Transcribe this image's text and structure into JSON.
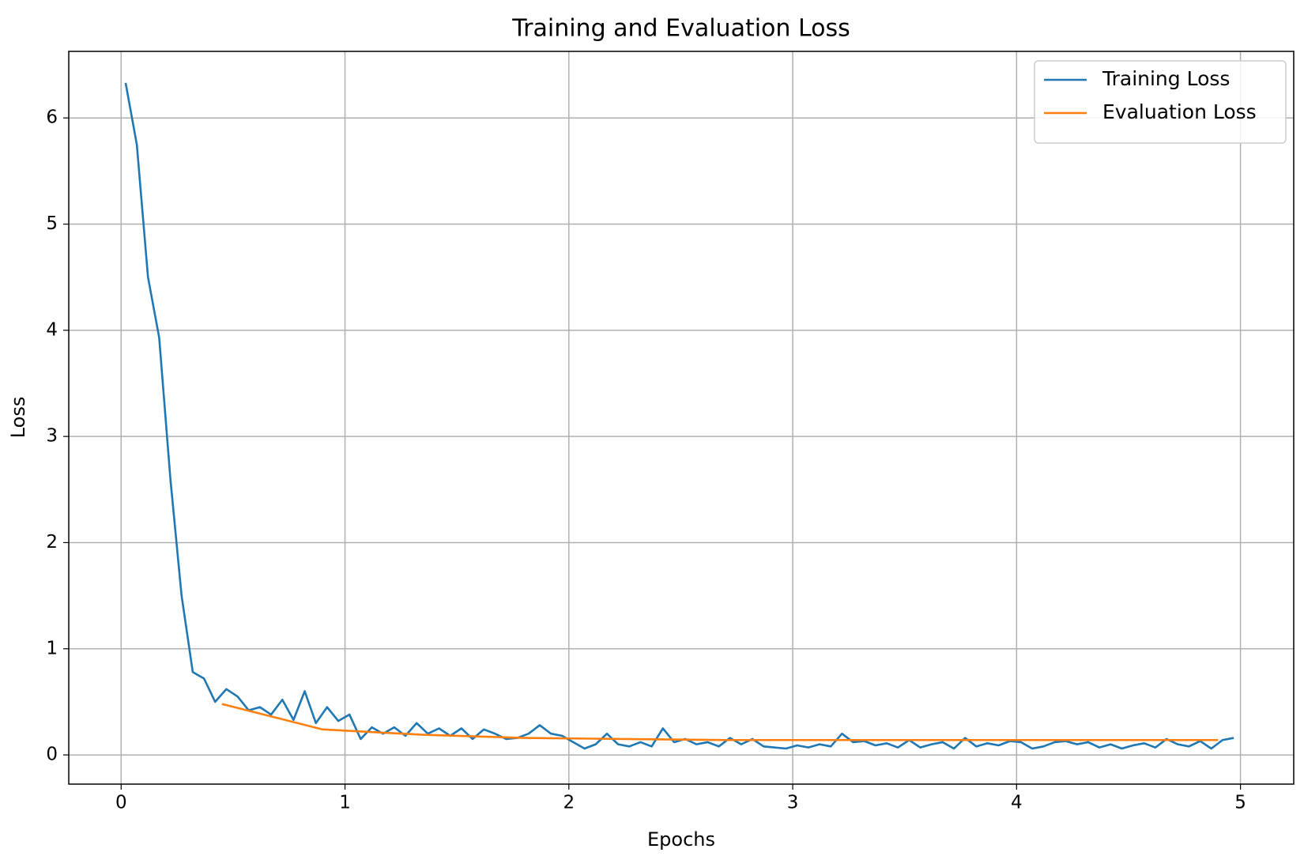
{
  "chart_data": {
    "type": "line",
    "title": "Training and Evaluation Loss",
    "xlabel": "Epochs",
    "ylabel": "Loss",
    "xlim": [
      -0.234,
      5.238
    ],
    "ylim": [
      -0.275,
      6.627
    ],
    "xticks": [
      0,
      1,
      2,
      3,
      4,
      5
    ],
    "yticks": [
      0,
      1,
      2,
      3,
      4,
      5,
      6
    ],
    "grid": true,
    "legend": "upper right",
    "series": [
      {
        "name": "Training Loss",
        "color": "#1f77b4",
        "x": [
          0.02,
          0.07,
          0.12,
          0.17,
          0.22,
          0.27,
          0.32,
          0.37,
          0.42,
          0.47,
          0.52,
          0.57,
          0.62,
          0.67,
          0.72,
          0.77,
          0.82,
          0.87,
          0.92,
          0.97,
          1.02,
          1.07,
          1.12,
          1.17,
          1.22,
          1.27,
          1.32,
          1.37,
          1.42,
          1.47,
          1.52,
          1.57,
          1.62,
          1.67,
          1.72,
          1.77,
          1.82,
          1.87,
          1.92,
          1.97,
          2.02,
          2.07,
          2.12,
          2.17,
          2.22,
          2.27,
          2.32,
          2.37,
          2.42,
          2.47,
          2.52,
          2.57,
          2.62,
          2.67,
          2.72,
          2.77,
          2.82,
          2.87,
          2.92,
          2.97,
          3.02,
          3.07,
          3.12,
          3.17,
          3.22,
          3.27,
          3.32,
          3.37,
          3.42,
          3.47,
          3.52,
          3.57,
          3.62,
          3.67,
          3.72,
          3.77,
          3.82,
          3.87,
          3.92,
          3.97,
          4.02,
          4.07,
          4.12,
          4.17,
          4.22,
          4.27,
          4.32,
          4.37,
          4.42,
          4.47,
          4.52,
          4.57,
          4.62,
          4.67,
          4.72,
          4.77,
          4.82,
          4.87,
          4.92,
          4.97
        ],
        "values": [
          6.33,
          5.75,
          4.5,
          3.93,
          2.6,
          1.5,
          0.78,
          0.72,
          0.5,
          0.62,
          0.55,
          0.42,
          0.45,
          0.38,
          0.52,
          0.33,
          0.6,
          0.3,
          0.45,
          0.32,
          0.38,
          0.15,
          0.26,
          0.2,
          0.26,
          0.18,
          0.3,
          0.2,
          0.25,
          0.18,
          0.25,
          0.15,
          0.24,
          0.2,
          0.15,
          0.16,
          0.2,
          0.28,
          0.2,
          0.18,
          0.12,
          0.06,
          0.1,
          0.2,
          0.1,
          0.08,
          0.12,
          0.08,
          0.25,
          0.12,
          0.15,
          0.1,
          0.12,
          0.08,
          0.16,
          0.1,
          0.15,
          0.08,
          0.07,
          0.06,
          0.09,
          0.07,
          0.1,
          0.08,
          0.2,
          0.12,
          0.13,
          0.09,
          0.11,
          0.07,
          0.14,
          0.07,
          0.1,
          0.12,
          0.06,
          0.16,
          0.08,
          0.11,
          0.09,
          0.13,
          0.12,
          0.06,
          0.08,
          0.12,
          0.13,
          0.1,
          0.12,
          0.07,
          0.1,
          0.06,
          0.09,
          0.11,
          0.07,
          0.15,
          0.1,
          0.08,
          0.13,
          0.06,
          0.14,
          0.16
        ]
      },
      {
        "name": "Evaluation Loss",
        "color": "#ff7f0e",
        "x": [
          0.45,
          0.9,
          1.35,
          1.8,
          2.25,
          2.7,
          3.15,
          3.6,
          4.05,
          4.5,
          4.9
        ],
        "values": [
          0.48,
          0.24,
          0.19,
          0.16,
          0.15,
          0.14,
          0.14,
          0.14,
          0.14,
          0.14,
          0.14
        ]
      }
    ]
  }
}
